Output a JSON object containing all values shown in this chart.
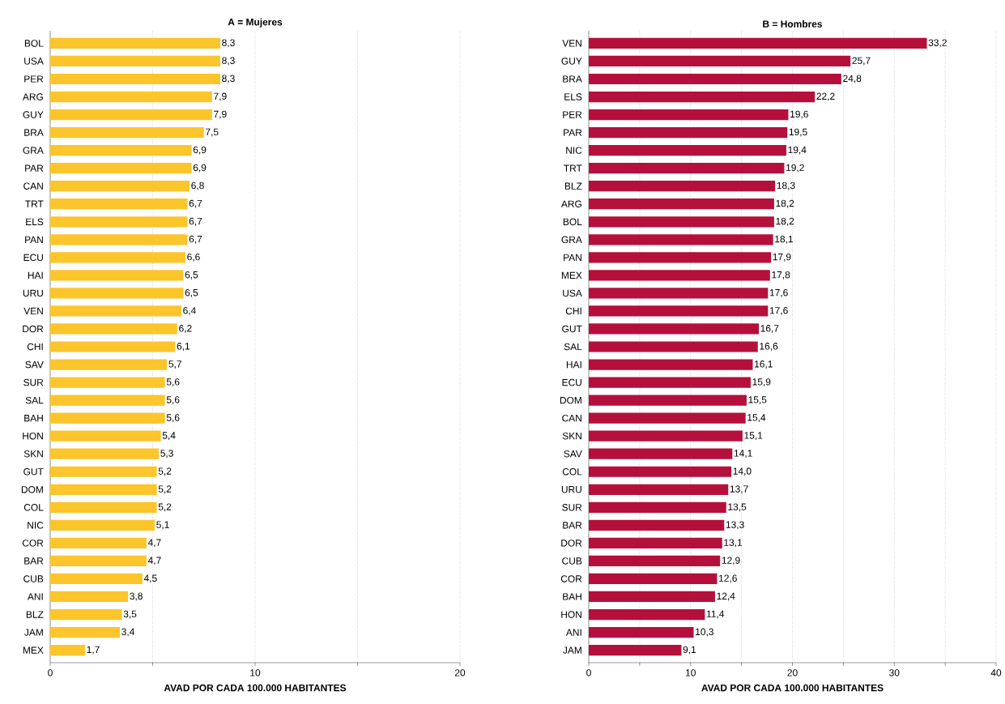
{
  "chart_data": [
    {
      "type": "bar",
      "orientation": "horizontal",
      "title": "A = Mujeres",
      "xlabel": "AVAD POR CADA 100.000 HABITANTES",
      "categories": [
        "BOL",
        "USA",
        "PER",
        "ARG",
        "GUY",
        "BRA",
        "GRA",
        "PAR",
        "CAN",
        "TRT",
        "ELS",
        "PAN",
        "ECU",
        "HAI",
        "URU",
        "VEN",
        "DOR",
        "CHI",
        "SAV",
        "SUR",
        "SAL",
        "BAH",
        "HON",
        "SKN",
        "GUT",
        "DOM",
        "COL",
        "NIC",
        "COR",
        "BAR",
        "CUB",
        "ANI",
        "BLZ",
        "JAM",
        "MEX"
      ],
      "values": [
        8.3,
        8.3,
        8.3,
        7.9,
        7.9,
        7.5,
        6.9,
        6.9,
        6.8,
        6.7,
        6.7,
        6.7,
        6.6,
        6.5,
        6.5,
        6.4,
        6.2,
        6.1,
        5.7,
        5.6,
        5.6,
        5.6,
        5.4,
        5.3,
        5.2,
        5.2,
        5.2,
        5.1,
        4.7,
        4.7,
        4.5,
        3.8,
        3.5,
        3.4,
        1.7
      ],
      "value_labels": [
        "8,3",
        "8,3",
        "8,3",
        "7,9",
        "7,9",
        "7,5",
        "6,9",
        "6,9",
        "6,8",
        "6,7",
        "6,7",
        "6,7",
        "6,6",
        "6,5",
        "6,5",
        "6,4",
        "6,2",
        "6,1",
        "5,7",
        "5,6",
        "5,6",
        "5,6",
        "5,4",
        "5,3",
        "5,2",
        "5,2",
        "5,2",
        "5,1",
        "4,7",
        "4,7",
        "4,5",
        "3,8",
        "3,5",
        "3,4",
        "1,7"
      ],
      "color": "#fbc52b",
      "xlim": [
        0,
        20
      ],
      "xticks": [
        0,
        {
          "value": 5,
          "label": null
        },
        10,
        {
          "value": 15,
          "label": null
        },
        20
      ],
      "grid": "x",
      "line_style": "dotted"
    },
    {
      "type": "bar",
      "orientation": "horizontal",
      "title": "B = Hombres",
      "xlabel": "AVAD POR CADA 100.000 HABITANTES",
      "categories": [
        "VEN",
        "GUY",
        "BRA",
        "ELS",
        "PER",
        "PAR",
        "NIC",
        "TRT",
        "BLZ",
        "ARG",
        "BOL",
        "GRA",
        "PAN",
        "MEX",
        "USA",
        "CHI",
        "GUT",
        "SAL",
        "HAI",
        "ECU",
        "DOM",
        "CAN",
        "SKN",
        "SAV",
        "COL",
        "URU",
        "SUR",
        "BAR",
        "DOR",
        "CUB",
        "COR",
        "BAH",
        "HON",
        "ANI",
        "JAM"
      ],
      "values": [
        33.2,
        25.7,
        24.8,
        22.2,
        19.6,
        19.5,
        19.4,
        19.2,
        18.3,
        18.2,
        18.2,
        18.1,
        17.9,
        17.8,
        17.6,
        17.6,
        16.7,
        16.6,
        16.1,
        15.9,
        15.5,
        15.4,
        15.1,
        14.1,
        14.0,
        13.7,
        13.5,
        13.3,
        13.1,
        12.9,
        12.6,
        12.4,
        11.4,
        10.3,
        9.1
      ],
      "value_labels": [
        "33,2",
        "25,7",
        "24,8",
        "22,2",
        "19,6",
        "19,5",
        "19,4",
        "19,2",
        "18,3",
        "18,2",
        "18,2",
        "18,1",
        "17,9",
        "17,8",
        "17,6",
        "17,6",
        "16,7",
        "16,6",
        "16,1",
        "15,9",
        "15,5",
        "15,4",
        "15,1",
        "14,1",
        "14,0",
        "13,7",
        "13,5",
        "13,3",
        "13,1",
        "12,9",
        "12,6",
        "12,4",
        "11,4",
        "10,3",
        "9,1"
      ],
      "color": "#b5103c",
      "xlim": [
        0,
        40
      ],
      "xticks": [
        0,
        {
          "value": 5,
          "label": null
        },
        10,
        {
          "value": 15,
          "label": null
        },
        20,
        {
          "value": 25,
          "label": null
        },
        30,
        {
          "value": 35,
          "label": null
        },
        40
      ],
      "grid": "x",
      "line_style": "dotted"
    }
  ]
}
